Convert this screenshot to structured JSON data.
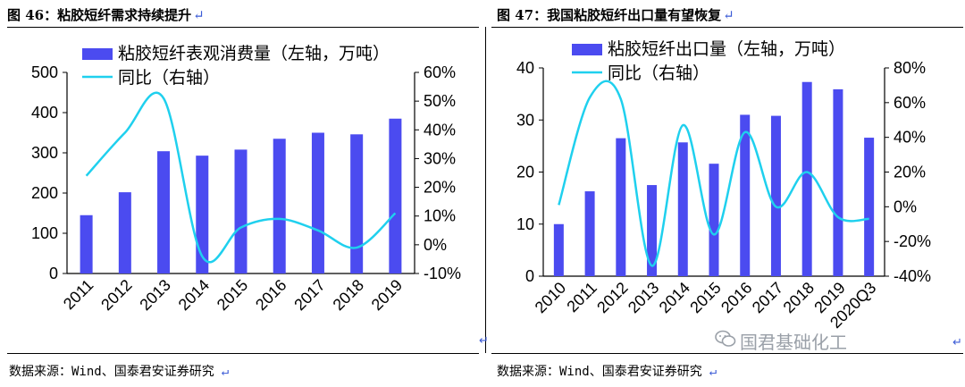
{
  "left": {
    "title": "图 46：粘胶短纤需求持续提升",
    "source": "数据来源：Wind、国泰君安证券研究"
  },
  "right": {
    "title": "图 47：我国粘胶短纤出口量有望恢复",
    "source": "数据来源：Wind、国泰君安证券研究"
  },
  "watermark": "国君基础化工",
  "return_mark": "↵",
  "colors": {
    "bar": "#4b4bf0",
    "line": "#1fd0ee"
  },
  "chart_data": [
    {
      "type": "bar",
      "categories": [
        "2011",
        "2012",
        "2013",
        "2014",
        "2015",
        "2016",
        "2017",
        "2018",
        "2019"
      ],
      "series": [
        {
          "name": "粘胶短纤表观消费量（左轴，万吨）",
          "type": "bar",
          "axis": "left",
          "values": [
            145,
            202,
            304,
            293,
            308,
            335,
            350,
            346,
            385
          ]
        },
        {
          "name": "同比（右轴）",
          "type": "line",
          "axis": "right",
          "values": [
            24,
            39,
            51,
            -4,
            6,
            9,
            5,
            -1,
            11
          ]
        }
      ],
      "ylim": [
        0,
        500
      ],
      "yticks": [
        "0",
        "100",
        "200",
        "300",
        "400",
        "500"
      ],
      "y2lim": [
        -10,
        60
      ],
      "y2ticks": [
        "-10%",
        "0%",
        "10%",
        "20%",
        "30%",
        "40%",
        "50%",
        "60%"
      ],
      "legend_position": "top-left"
    },
    {
      "type": "bar",
      "categories": [
        "2010",
        "2011",
        "2012",
        "2013",
        "2014",
        "2015",
        "2016",
        "2017",
        "2018",
        "2019",
        "2020Q3"
      ],
      "series": [
        {
          "name": "粘胶短纤出口量（左轴，万吨）",
          "type": "bar",
          "axis": "left",
          "values": [
            10,
            16.3,
            26.5,
            17.5,
            25.7,
            21.6,
            31,
            30.8,
            37.3,
            35.9,
            26.6
          ]
        },
        {
          "name": "同比（右轴）",
          "type": "line",
          "axis": "right",
          "values": [
            1,
            63,
            62,
            -34,
            47,
            -16,
            43,
            0,
            20,
            -6,
            -7
          ]
        }
      ],
      "ylim": [
        0,
        40
      ],
      "yticks": [
        "0",
        "10",
        "20",
        "30",
        "40"
      ],
      "y2lim": [
        -40,
        80
      ],
      "y2ticks": [
        "-40%",
        "-20%",
        "0%",
        "20%",
        "40%",
        "60%",
        "80%"
      ],
      "legend_position": "top-left"
    }
  ]
}
